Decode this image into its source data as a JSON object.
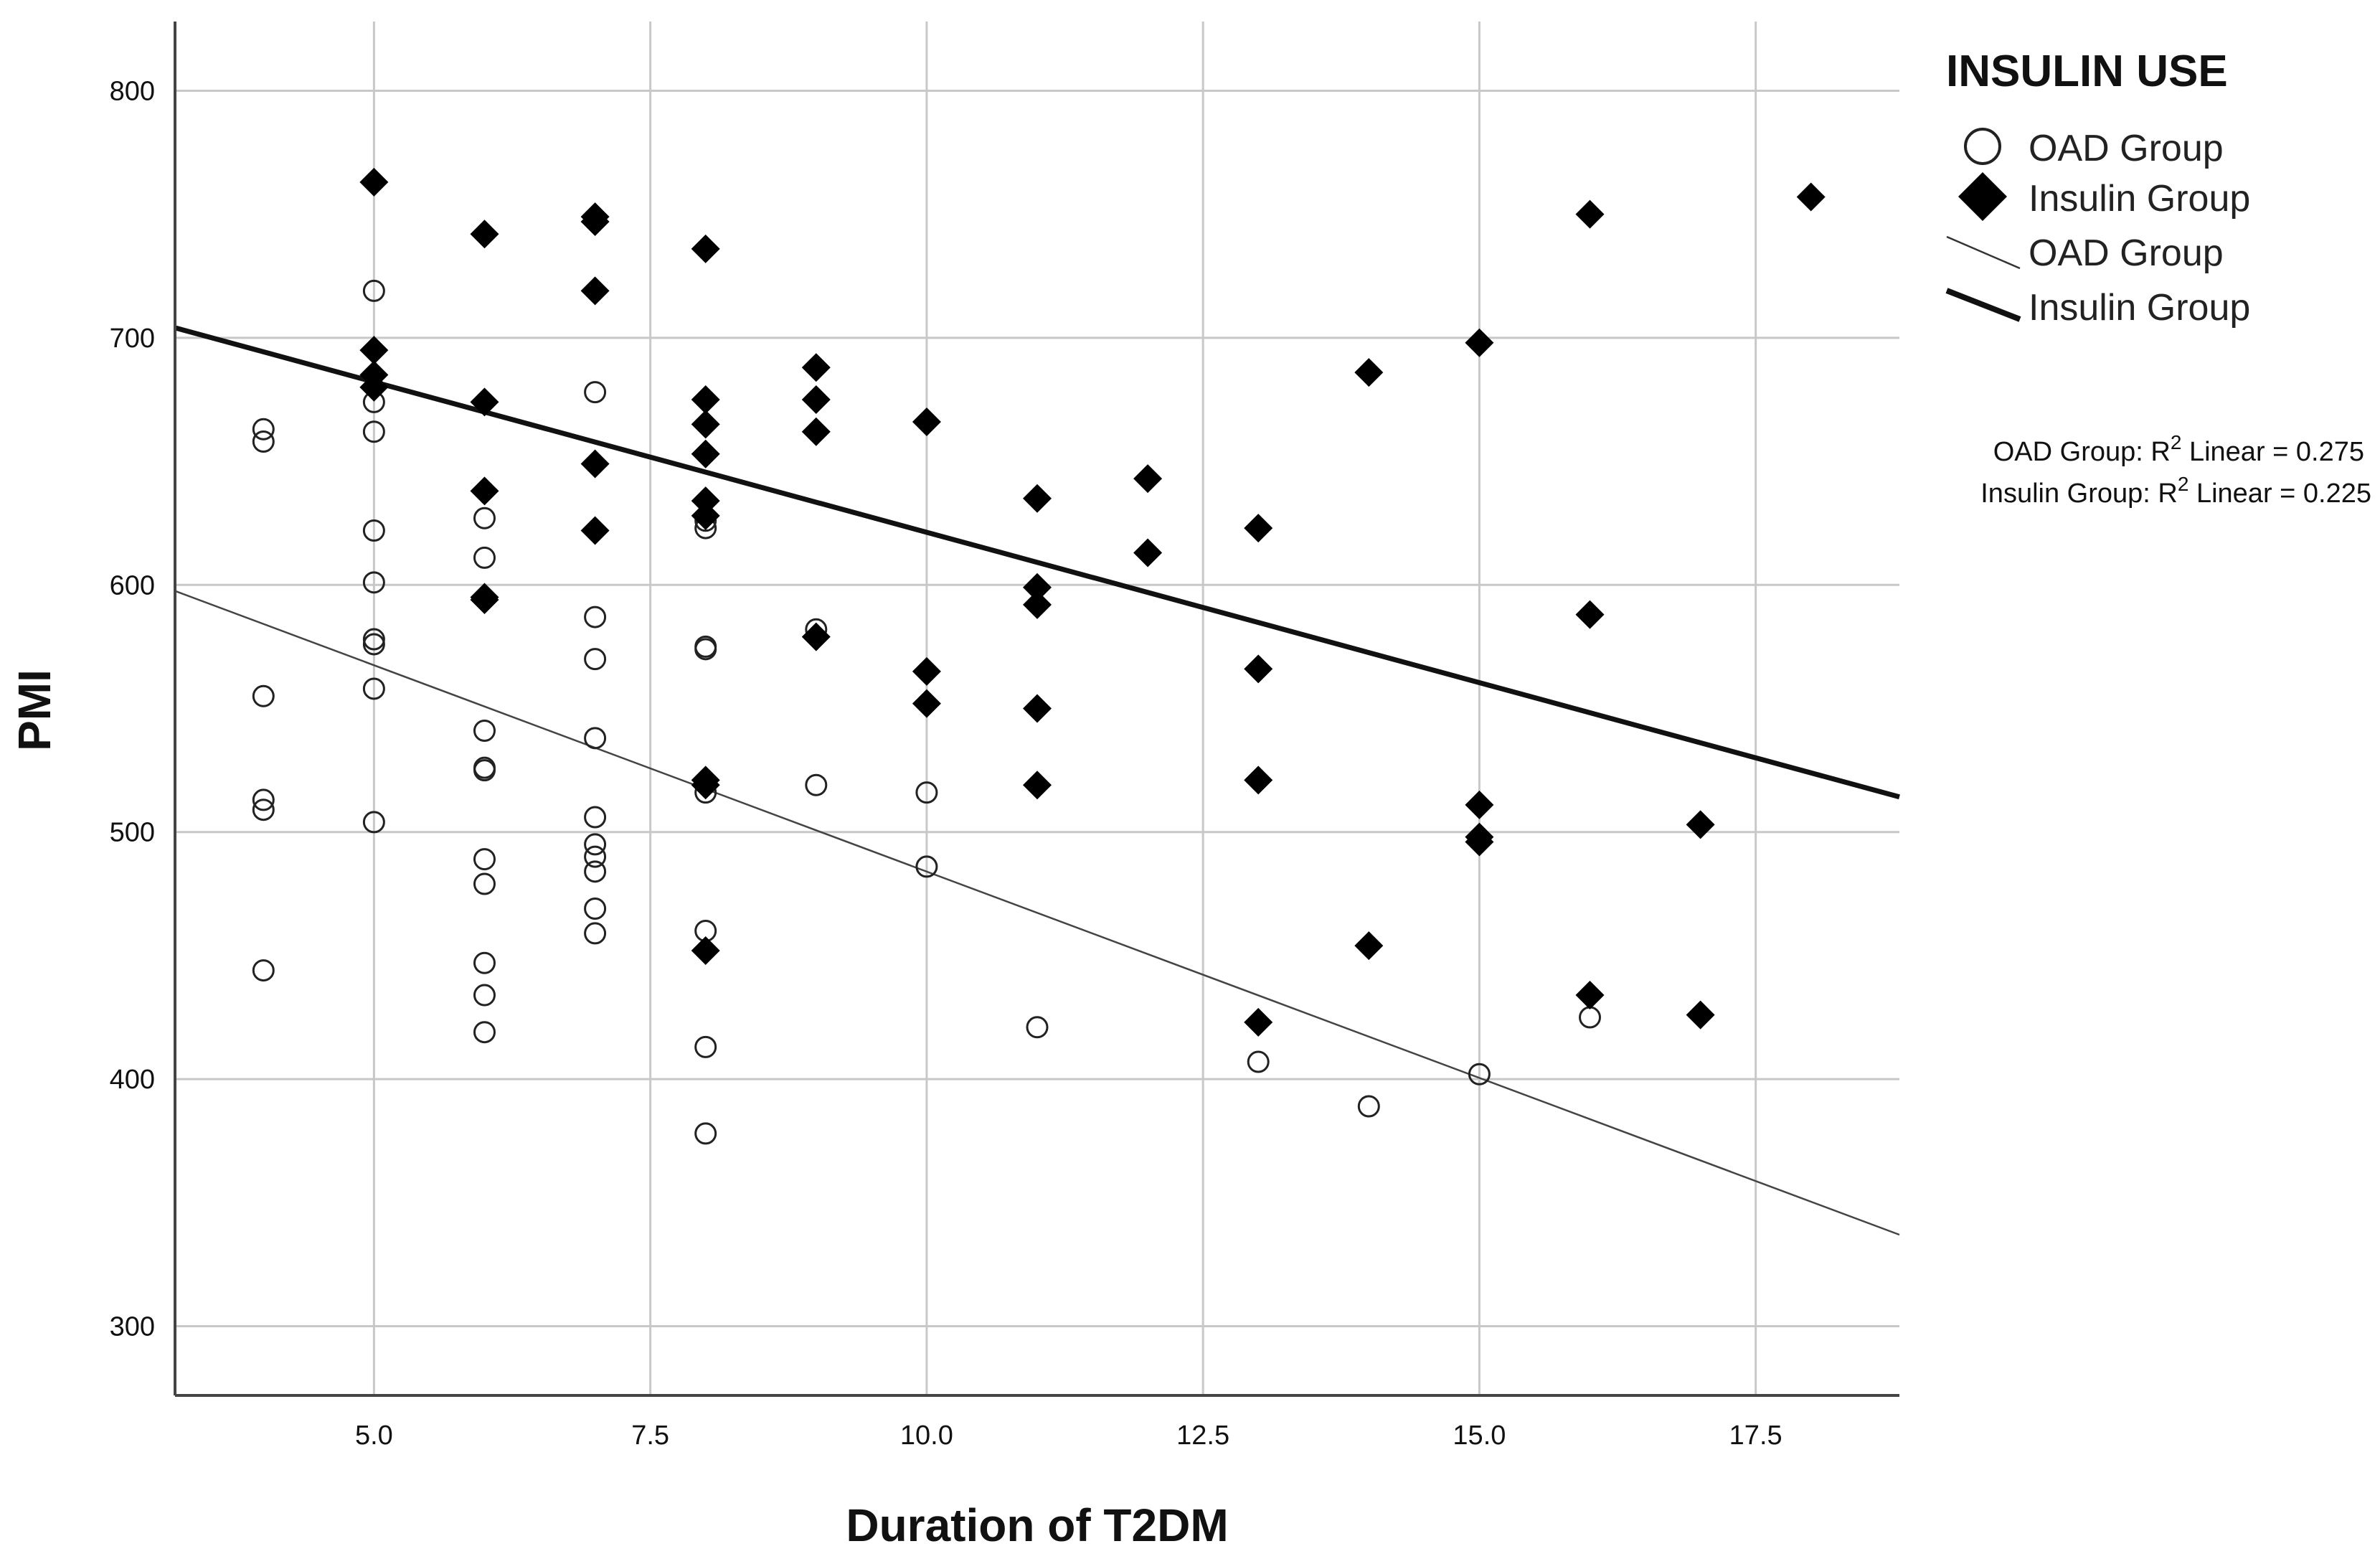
{
  "chart_data": {
    "type": "scatter",
    "title": "",
    "xlabel": "Duration of T2DM",
    "ylabel": "PMI",
    "xlim": [
      3.2,
      18.8
    ],
    "ylim": [
      272,
      828
    ],
    "x_ticks": [
      5.0,
      7.5,
      10.0,
      12.5,
      15.0,
      17.5
    ],
    "x_tick_labels": [
      "5.0",
      "7.5",
      "10.0",
      "12.5",
      "15.0",
      "17.5"
    ],
    "y_ticks": [
      300,
      400,
      500,
      600,
      700,
      800
    ],
    "y_tick_labels": [
      "300",
      "400",
      "500",
      "600",
      "700",
      "800"
    ],
    "grid": true,
    "legend": {
      "title": "INSULIN USE",
      "placement": "top-right",
      "entries": [
        {
          "label": "OAD Group",
          "kind": "marker",
          "marker": "open-circle"
        },
        {
          "label": "Insulin Group",
          "kind": "marker",
          "marker": "filled-diamond"
        },
        {
          "label": "OAD Group",
          "kind": "line",
          "style": "thin"
        },
        {
          "label": "Insulin Group",
          "kind": "line",
          "style": "thick"
        }
      ]
    },
    "fit_notes": [
      {
        "prefix": "OAD Group: R",
        "sup": "2",
        "suffix": " Linear = 0.275"
      },
      {
        "prefix": "Insulin Group: R",
        "sup": "2",
        "suffix": " Linear = 0.225"
      }
    ],
    "series": [
      {
        "name": "OAD Group",
        "marker": "open-circle",
        "points": [
          [
            4,
            663
          ],
          [
            4,
            658
          ],
          [
            4,
            555
          ],
          [
            4,
            513
          ],
          [
            4,
            509
          ],
          [
            4,
            444
          ],
          [
            5,
            719
          ],
          [
            5,
            674
          ],
          [
            5,
            662
          ],
          [
            5,
            622
          ],
          [
            5,
            601
          ],
          [
            5,
            578
          ],
          [
            5,
            576
          ],
          [
            5,
            558
          ],
          [
            5,
            504
          ],
          [
            6,
            627
          ],
          [
            6,
            611
          ],
          [
            6,
            541
          ],
          [
            6,
            526
          ],
          [
            6,
            525
          ],
          [
            6,
            489
          ],
          [
            6,
            479
          ],
          [
            6,
            447
          ],
          [
            6,
            434
          ],
          [
            6,
            419
          ],
          [
            7,
            678
          ],
          [
            7,
            587
          ],
          [
            7,
            570
          ],
          [
            7,
            538
          ],
          [
            7,
            506
          ],
          [
            7,
            495
          ],
          [
            7,
            490
          ],
          [
            7,
            484
          ],
          [
            7,
            469
          ],
          [
            7,
            459
          ],
          [
            8,
            626
          ],
          [
            8,
            623
          ],
          [
            8,
            575
          ],
          [
            8,
            574
          ],
          [
            8,
            516
          ],
          [
            8,
            460
          ],
          [
            8,
            413
          ],
          [
            8,
            378
          ],
          [
            9,
            582
          ],
          [
            9,
            519
          ],
          [
            10,
            516
          ],
          [
            10,
            486
          ],
          [
            11,
            421
          ],
          [
            13,
            407
          ],
          [
            14,
            389
          ],
          [
            15,
            402
          ],
          [
            16,
            425
          ]
        ],
        "fit": {
          "intercept": 651,
          "slope": -16.7,
          "x_range": [
            3.2,
            18.8
          ]
        }
      },
      {
        "name": "Insulin Group",
        "marker": "filled-diamond",
        "points": [
          [
            5,
            763
          ],
          [
            5,
            695
          ],
          [
            5,
            685
          ],
          [
            5,
            680
          ],
          [
            6,
            742
          ],
          [
            6,
            674
          ],
          [
            6,
            638
          ],
          [
            6,
            595
          ],
          [
            6,
            594
          ],
          [
            7,
            749
          ],
          [
            7,
            747
          ],
          [
            7,
            719
          ],
          [
            7,
            649
          ],
          [
            7,
            622
          ],
          [
            8,
            736
          ],
          [
            8,
            675
          ],
          [
            8,
            665
          ],
          [
            8,
            653
          ],
          [
            8,
            634
          ],
          [
            8,
            628
          ],
          [
            8,
            521
          ],
          [
            8,
            519
          ],
          [
            8,
            452
          ],
          [
            9,
            688
          ],
          [
            9,
            675
          ],
          [
            9,
            662
          ],
          [
            9,
            579
          ],
          [
            10,
            666
          ],
          [
            10,
            565
          ],
          [
            10,
            552
          ],
          [
            11,
            635
          ],
          [
            11,
            599
          ],
          [
            11,
            592
          ],
          [
            11,
            550
          ],
          [
            11,
            519
          ],
          [
            12,
            643
          ],
          [
            12,
            613
          ],
          [
            13,
            623
          ],
          [
            13,
            566
          ],
          [
            13,
            521
          ],
          [
            13,
            423
          ],
          [
            14,
            686
          ],
          [
            14,
            454
          ],
          [
            15,
            698
          ],
          [
            15,
            511
          ],
          [
            15,
            498
          ],
          [
            15,
            496
          ],
          [
            16,
            750
          ],
          [
            16,
            588
          ],
          [
            16,
            434
          ],
          [
            17,
            503
          ],
          [
            17,
            426
          ],
          [
            18,
            757
          ]
        ],
        "fit": {
          "intercept": 743,
          "slope": -12.17,
          "x_range": [
            3.2,
            18.8
          ]
        }
      }
    ]
  }
}
